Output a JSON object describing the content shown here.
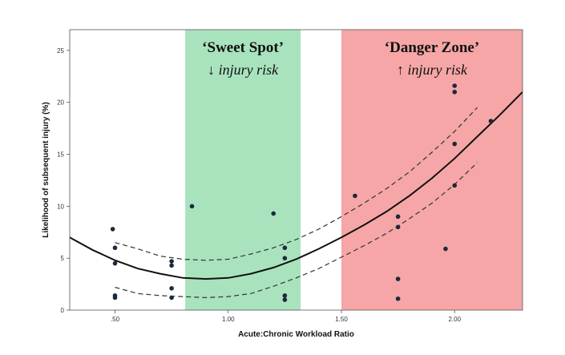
{
  "chart_data": {
    "type": "scatter",
    "xlabel": "Acute:Chronic Workload Ratio",
    "ylabel": "Likelihood of subsequent injury (%)",
    "xlim": [
      0.3,
      2.3
    ],
    "ylim": [
      0,
      27
    ],
    "x_ticks": [
      {
        "value": 0.5,
        "label": ".50"
      },
      {
        "value": 1.0,
        "label": "1.00"
      },
      {
        "value": 1.5,
        "label": "1.50"
      },
      {
        "value": 2.0,
        "label": "2.00"
      }
    ],
    "y_ticks": [
      0,
      5,
      10,
      15,
      20,
      25
    ],
    "grid": false,
    "zones": [
      {
        "title": "‘Sweet Spot’",
        "subtitle": "↓ injury risk",
        "x_start": 0.81,
        "x_end": 1.32,
        "color": "#a8e3be"
      },
      {
        "title": "‘Danger Zone’",
        "subtitle": "↑ injury risk",
        "x_start": 1.5,
        "x_end": 2.3,
        "color": "#f6a6a6"
      }
    ],
    "points": [
      {
        "x": 0.49,
        "y": 7.8
      },
      {
        "x": 0.5,
        "y": 6.0
      },
      {
        "x": 0.5,
        "y": 4.5
      },
      {
        "x": 0.5,
        "y": 1.4
      },
      {
        "x": 0.5,
        "y": 1.2
      },
      {
        "x": 0.75,
        "y": 4.7
      },
      {
        "x": 0.75,
        "y": 4.3
      },
      {
        "x": 0.75,
        "y": 2.1
      },
      {
        "x": 0.75,
        "y": 1.2
      },
      {
        "x": 0.84,
        "y": 10.0
      },
      {
        "x": 1.2,
        "y": 9.3
      },
      {
        "x": 1.25,
        "y": 6.0
      },
      {
        "x": 1.25,
        "y": 5.0
      },
      {
        "x": 1.25,
        "y": 1.4
      },
      {
        "x": 1.25,
        "y": 1.0
      },
      {
        "x": 1.56,
        "y": 11.0
      },
      {
        "x": 1.75,
        "y": 9.0
      },
      {
        "x": 1.75,
        "y": 8.0
      },
      {
        "x": 1.75,
        "y": 3.0
      },
      {
        "x": 1.75,
        "y": 1.1
      },
      {
        "x": 1.96,
        "y": 5.9
      },
      {
        "x": 2.0,
        "y": 21.6
      },
      {
        "x": 2.0,
        "y": 21.0
      },
      {
        "x": 2.0,
        "y": 16.0
      },
      {
        "x": 2.0,
        "y": 12.0
      },
      {
        "x": 2.16,
        "y": 18.2
      }
    ],
    "fit": {
      "x": [
        0.3,
        0.4,
        0.5,
        0.6,
        0.7,
        0.8,
        0.9,
        1.0,
        1.1,
        1.2,
        1.3,
        1.4,
        1.5,
        1.6,
        1.7,
        1.8,
        1.9,
        2.0,
        2.1,
        2.2,
        2.3
      ],
      "y": [
        7.0,
        5.8,
        4.8,
        4.0,
        3.5,
        3.1,
        3.0,
        3.1,
        3.5,
        4.1,
        4.9,
        5.9,
        7.0,
        8.2,
        9.5,
        11.0,
        12.7,
        14.6,
        16.7,
        18.8,
        21.0
      ],
      "upper": [
        null,
        null,
        6.5,
        5.9,
        5.2,
        4.9,
        4.8,
        4.9,
        5.4,
        6.0,
        6.8,
        7.8,
        9.0,
        10.3,
        11.7,
        13.3,
        15.2,
        17.2,
        19.5,
        null,
        null
      ],
      "lower": [
        null,
        null,
        2.2,
        1.6,
        1.4,
        1.3,
        1.2,
        1.3,
        1.6,
        2.3,
        3.1,
        4.0,
        5.1,
        6.2,
        7.4,
        8.8,
        10.3,
        12.1,
        14.2,
        null,
        null
      ]
    },
    "marker_color": "#1b2a3a"
  }
}
